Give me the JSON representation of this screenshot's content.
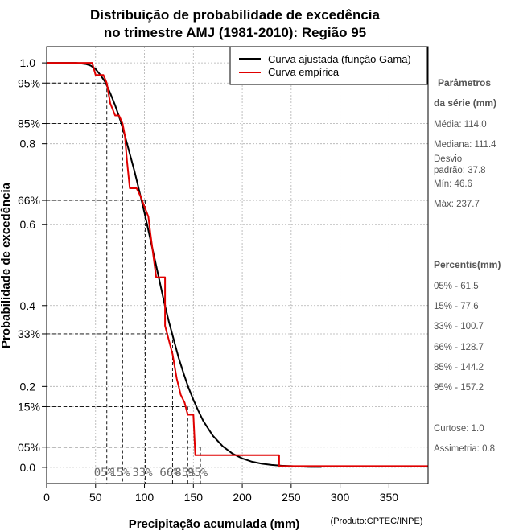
{
  "chart_data": {
    "type": "line",
    "title_line1": "Distribuição de probabilidade de excedência",
    "title_line2": "no trimestre AMJ (1981-2010): Região 95",
    "xlabel": "Precipitação acumulada (mm)",
    "ylabel": "Probabilidade de excedência",
    "credit": "(Produto:CPTEC/INPE)",
    "xlim": [
      0,
      390
    ],
    "ylim": [
      -0.04,
      1.04
    ],
    "x_ticks": [
      0,
      50,
      100,
      150,
      200,
      250,
      300,
      350
    ],
    "x_tick_labels": [
      "0",
      "50",
      "100",
      "150",
      "200",
      "250",
      "300",
      "350"
    ],
    "y_ticks": [
      0.0,
      0.2,
      0.4,
      0.6,
      0.8,
      1.0
    ],
    "y_tick_labels": [
      "0.0",
      "0.2",
      "0.4",
      "0.6",
      "0.8",
      "1.0"
    ],
    "y_pct_ticks": [
      0.05,
      0.15,
      0.33,
      0.66,
      0.85,
      0.95
    ],
    "y_pct_labels": [
      "05%",
      "15%",
      "33%",
      "66%",
      "85%",
      "95%"
    ],
    "grid": true,
    "legend": {
      "position": "top-right",
      "fitted": "Curva ajustada (função Gama)",
      "empirical": "Curva empírica"
    },
    "colors": {
      "fitted": "#000000",
      "empirical": "#e00000",
      "grid": "#b0b0b0"
    },
    "series": [
      {
        "name": "Curva ajustada (função Gama)",
        "x": [
          0,
          30,
          40,
          45,
          50,
          55,
          60,
          65,
          70,
          75,
          80,
          85,
          90,
          95,
          100,
          105,
          110,
          115,
          120,
          125,
          130,
          135,
          140,
          145,
          150,
          155,
          160,
          170,
          180,
          190,
          200,
          210,
          220,
          230,
          240,
          250,
          260,
          270,
          281
        ],
        "y": [
          1.0,
          1.0,
          0.997,
          0.993,
          0.985,
          0.97,
          0.952,
          0.925,
          0.895,
          0.86,
          0.82,
          0.775,
          0.73,
          0.68,
          0.63,
          0.575,
          0.52,
          0.465,
          0.41,
          0.36,
          0.315,
          0.27,
          0.232,
          0.197,
          0.167,
          0.14,
          0.115,
          0.078,
          0.052,
          0.034,
          0.022,
          0.014,
          0.009,
          0.006,
          0.004,
          0.003,
          0.002,
          0.001,
          0.001
        ]
      },
      {
        "name": "Curva empírica",
        "x": [
          0,
          46.6,
          50,
          55,
          58,
          61.5,
          65,
          70,
          74,
          77.6,
          80,
          82,
          85,
          87,
          92,
          96,
          100.7,
          104,
          106,
          112,
          112,
          121,
          121,
          128.7,
          133,
          137,
          141,
          144.2,
          150,
          152,
          157.2,
          161,
          175,
          200,
          237.7,
          237.7,
          242,
          250,
          300,
          350,
          390
        ],
        "y": [
          1.0,
          1.0,
          0.97,
          0.97,
          0.97,
          0.95,
          0.9,
          0.87,
          0.87,
          0.85,
          0.82,
          0.76,
          0.69,
          0.69,
          0.69,
          0.67,
          0.64,
          0.62,
          0.58,
          0.47,
          0.47,
          0.47,
          0.35,
          0.28,
          0.22,
          0.18,
          0.16,
          0.13,
          0.13,
          0.03,
          0.03,
          0.03,
          0.03,
          0.03,
          0.03,
          0.003,
          0.003,
          0.003,
          0.003,
          0.003,
          0.003
        ]
      }
    ],
    "percentile_markers": [
      {
        "label": "05%",
        "x": 61.5,
        "y": 0.95
      },
      {
        "label": "15%",
        "x": 77.6,
        "y": 0.85
      },
      {
        "label": "33%",
        "x": 100.7,
        "y": 0.66
      },
      {
        "label": "66%",
        "x": 128.7,
        "y": 0.33
      },
      {
        "label": "85%",
        "x": 144.2,
        "y": 0.15
      },
      {
        "label": "95%",
        "x": 157.2,
        "y": 0.05
      }
    ]
  },
  "sidebar": {
    "params_head_1": "Parâmetros",
    "params_head_2": "da série (mm)",
    "media": "Média: 114.0",
    "mediana": "Mediana: 111.4",
    "desvio_1": "Desvio",
    "desvio_2": "padrão: 37.8",
    "min": "Mín: 46.6",
    "max": "Máx: 237.7",
    "percentis_head": "Percentis(mm)",
    "p05": "05% - 61.5",
    "p15": "15% - 77.6",
    "p33": "33% - 100.7",
    "p66": "66% - 128.7",
    "p85": "85% - 144.2",
    "p95": "95% - 157.2",
    "curtose": "Curtose: 1.0",
    "assimetria": "Assimetria: 0.8"
  }
}
